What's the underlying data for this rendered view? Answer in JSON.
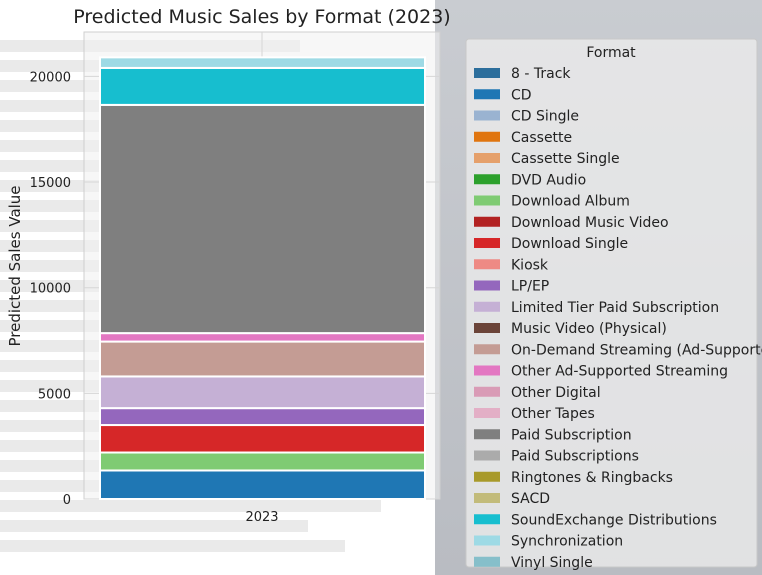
{
  "chart_data": {
    "type": "bar",
    "stacked": true,
    "title": "Predicted Music Sales by Format (2023)",
    "xlabel": "",
    "ylabel": "Predicted Sales Value",
    "categories": [
      "2023"
    ],
    "ylim": [
      0,
      22100
    ],
    "yticks": [
      0,
      5000,
      10000,
      15000,
      20000
    ],
    "grid": true,
    "legend": {
      "title": "Format",
      "placement": "right"
    },
    "series": [
      {
        "name": "8 - Track",
        "values": [
          0
        ],
        "color": "#2c6e9c"
      },
      {
        "name": "CD",
        "values": [
          1350
        ],
        "color": "#1f77b4"
      },
      {
        "name": "CD Single",
        "values": [
          0
        ],
        "color": "#9ab3d1"
      },
      {
        "name": "Cassette",
        "values": [
          0
        ],
        "color": "#e0750f"
      },
      {
        "name": "Cassette Single",
        "values": [
          0
        ],
        "color": "#e5a06b"
      },
      {
        "name": "DVD Audio",
        "values": [
          0
        ],
        "color": "#2ca02c"
      },
      {
        "name": "Download Album",
        "values": [
          850
        ],
        "color": "#7fcb73"
      },
      {
        "name": "Download Music Video",
        "values": [
          0
        ],
        "color": "#b22222"
      },
      {
        "name": "Download Single",
        "values": [
          1300
        ],
        "color": "#d62728"
      },
      {
        "name": "Kiosk",
        "values": [
          0
        ],
        "color": "#ee8a84"
      },
      {
        "name": "LP/EP",
        "values": [
          800
        ],
        "color": "#9467bd"
      },
      {
        "name": "Limited Tier Paid Subscription",
        "values": [
          1500
        ],
        "color": "#c5b0d5"
      },
      {
        "name": "Music Video (Physical)",
        "values": [
          0
        ],
        "color": "#6b4439"
      },
      {
        "name": "On-Demand Streaming (Ad-Supported)",
        "values": [
          1650
        ],
        "color": "#c49c94"
      },
      {
        "name": "Other Ad-Supported Streaming",
        "values": [
          400
        ],
        "color": "#e377c2"
      },
      {
        "name": "Other Digital",
        "values": [
          0
        ],
        "color": "#d99bb6"
      },
      {
        "name": "Other Tapes",
        "values": [
          0
        ],
        "color": "#e3afc6"
      },
      {
        "name": "Paid Subscription",
        "values": [
          10800
        ],
        "color": "#7f7f7f"
      },
      {
        "name": "Paid Subscriptions",
        "values": [
          0
        ],
        "color": "#ababab"
      },
      {
        "name": "Ringtones & Ringbacks",
        "values": [
          0
        ],
        "color": "#a89a2a"
      },
      {
        "name": "SACD",
        "values": [
          0
        ],
        "color": "#c2bb7a"
      },
      {
        "name": "SoundExchange Distributions",
        "values": [
          1750
        ],
        "color": "#17becf"
      },
      {
        "name": "Synchronization",
        "values": [
          500
        ],
        "color": "#9edae5"
      },
      {
        "name": "Vinyl Single",
        "values": [
          0
        ],
        "color": "#86bfca"
      }
    ]
  }
}
